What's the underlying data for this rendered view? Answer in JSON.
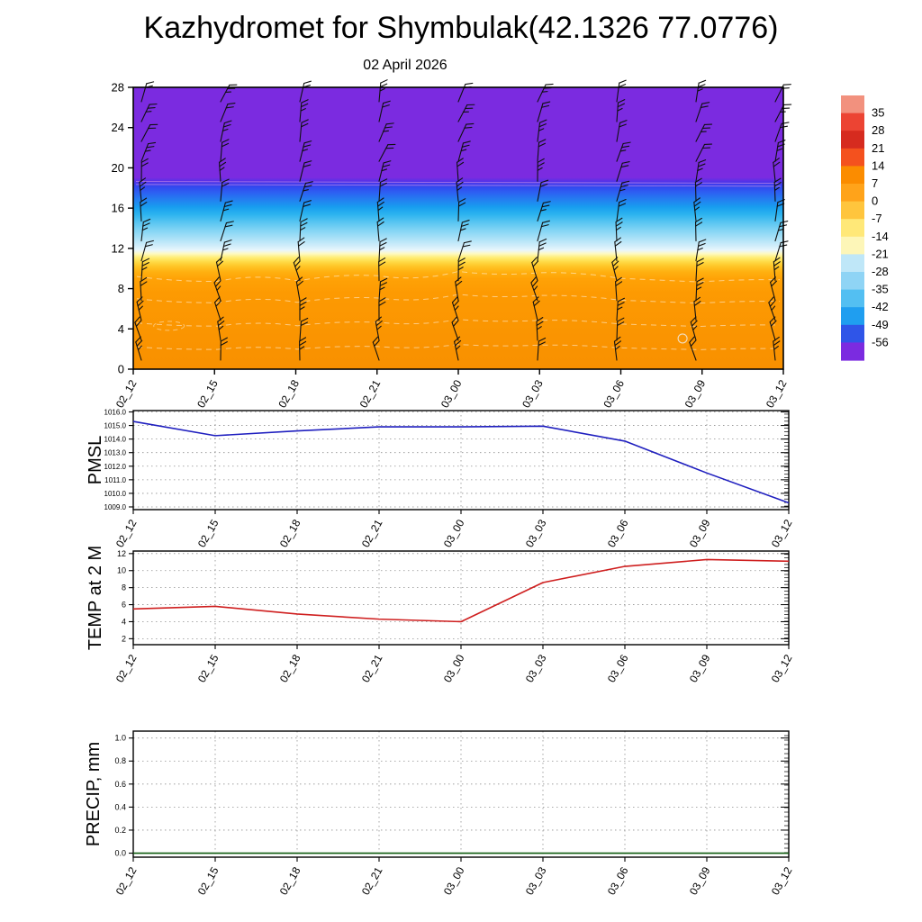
{
  "title": "Kazhydromet for Shymbulak(42.1326 77.0776)",
  "subtitle": "02 April 2026",
  "time_labels": [
    "02_12",
    "02_15",
    "02_18",
    "02_21",
    "03_00",
    "03_03",
    "03_06",
    "03_09",
    "03_12"
  ],
  "chart_data": [
    {
      "type": "heatmap",
      "name": "upper-air temperature cross-section with wind barbs",
      "x": [
        "02_12",
        "02_15",
        "02_18",
        "02_21",
        "03_00",
        "03_03",
        "03_06",
        "03_09",
        "03_12"
      ],
      "ylim": [
        0,
        28
      ],
      "y_ticks": [
        0,
        4,
        8,
        12,
        16,
        20,
        24,
        28
      ],
      "colorbar": {
        "tick_labels": [
          "35",
          "28",
          "21",
          "14",
          "7",
          "0",
          "-7",
          "-14",
          "-21",
          "-28",
          "-35",
          "-42",
          "-49",
          "-56"
        ],
        "segment_colors": [
          "#f2917e",
          "#ec4433",
          "#d62b1f",
          "#f4511e",
          "#fb8c00",
          "#ffa31a",
          "#ffc53d",
          "#ffe878",
          "#fdf6b8",
          "#bfe7f8",
          "#8fd4f5",
          "#53bff2",
          "#1f9ef0",
          "#2f55e8",
          "#7b2be0"
        ]
      },
      "gradient_stops": [
        {
          "pos": 0.0,
          "color": "#7b2be0"
        },
        {
          "pos": 0.32,
          "color": "#7b2be0"
        },
        {
          "pos": 0.335,
          "color": "#5133e8"
        },
        {
          "pos": 0.35,
          "color": "#3344ee"
        },
        {
          "pos": 0.375,
          "color": "#2c62f2"
        },
        {
          "pos": 0.4,
          "color": "#2380f0"
        },
        {
          "pos": 0.425,
          "color": "#189eef"
        },
        {
          "pos": 0.45,
          "color": "#2bb3ef"
        },
        {
          "pos": 0.475,
          "color": "#52c3f1"
        },
        {
          "pos": 0.505,
          "color": "#7fd3f4"
        },
        {
          "pos": 0.535,
          "color": "#a9e1f7"
        },
        {
          "pos": 0.56,
          "color": "#cdecfa"
        },
        {
          "pos": 0.578,
          "color": "#e9f6fc"
        },
        {
          "pos": 0.59,
          "color": "#fdf9c4"
        },
        {
          "pos": 0.603,
          "color": "#ffee7a"
        },
        {
          "pos": 0.618,
          "color": "#ffdc48"
        },
        {
          "pos": 0.635,
          "color": "#ffc526"
        },
        {
          "pos": 0.655,
          "color": "#ffb010"
        },
        {
          "pos": 0.68,
          "color": "#ffa206"
        },
        {
          "pos": 0.73,
          "color": "#fd9a02"
        },
        {
          "pos": 1.0,
          "color": "#f89000"
        }
      ],
      "contour_levels_y": [
        2.2,
        4.6,
        7.0,
        9.2
      ],
      "upper_contours_y": [
        18.35,
        18.65
      ],
      "closed_contour": {
        "x_frac": 0.845,
        "y": 3.05
      },
      "wind_barbs": {
        "columns": 9,
        "rows": 14
      }
    },
    {
      "type": "line",
      "name": "PMSL",
      "ylabel": "PMSL",
      "color": "#1f1fbf",
      "x": [
        "02_12",
        "02_15",
        "02_18",
        "02_21",
        "03_00",
        "03_03",
        "03_06",
        "03_09",
        "03_12"
      ],
      "values": [
        1015.3,
        1014.25,
        1014.6,
        1014.9,
        1014.9,
        1014.95,
        1013.85,
        1011.5,
        1009.3
      ],
      "ylim": [
        1008.8,
        1016.1
      ],
      "yticks": [
        1009,
        1010,
        1011,
        1012,
        1013,
        1014,
        1015,
        1016
      ],
      "ytick_labels": [
        "1009.0",
        "1010.0",
        "1011.0",
        "1012.0",
        "1013.0",
        "1014.0",
        "1015.0",
        "1016.0"
      ]
    },
    {
      "type": "line",
      "name": "TEMP at 2 M",
      "ylabel": "TEMP at 2 M",
      "color": "#cf1f1f",
      "x": [
        "02_12",
        "02_15",
        "02_18",
        "02_21",
        "03_00",
        "03_03",
        "03_06",
        "03_09",
        "03_12"
      ],
      "values": [
        5.5,
        5.8,
        4.9,
        4.3,
        4.0,
        8.6,
        10.5,
        11.3,
        11.1
      ],
      "ylim": [
        1.3,
        12.3
      ],
      "yticks": [
        2,
        4,
        6,
        8,
        10,
        12
      ],
      "ytick_labels": [
        "2",
        "4",
        "6",
        "8",
        "10",
        "12"
      ]
    },
    {
      "type": "line",
      "name": "PRECIP, mm",
      "ylabel": "PRECIP, mm",
      "color": "#0f5c0f",
      "x": [
        "02_12",
        "02_15",
        "02_18",
        "02_21",
        "03_00",
        "03_03",
        "03_06",
        "03_09",
        "03_12"
      ],
      "values": [
        0,
        0,
        0,
        0,
        0,
        0,
        0,
        0,
        0
      ],
      "ylim": [
        -0.035,
        1.06
      ],
      "yticks": [
        0,
        0.2,
        0.4,
        0.6,
        0.8,
        1.0
      ],
      "ytick_labels": [
        "0.0",
        "0.2",
        "0.4",
        "0.6",
        "0.8",
        "1.0"
      ]
    }
  ]
}
